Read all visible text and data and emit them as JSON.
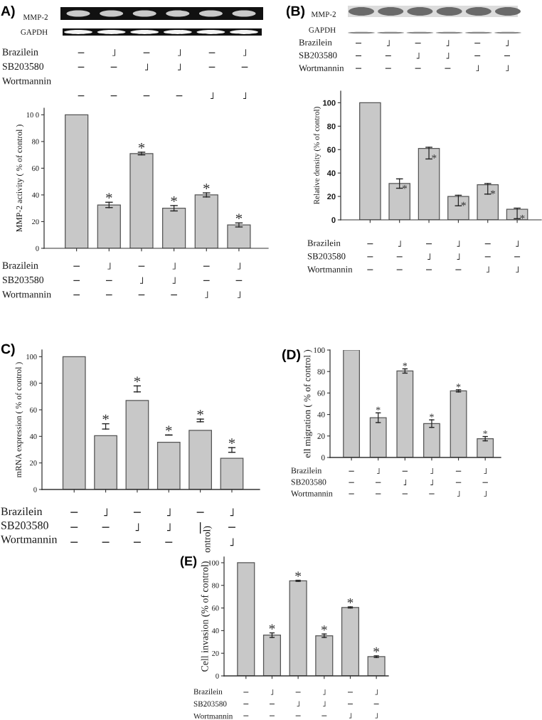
{
  "chart_data": [
    {
      "type": "other",
      "title": "A)",
      "annotations": [
        "MMP-2",
        "GAPDH"
      ],
      "xlabel": "Brazilein\nSB203580\nWortmannin",
      "categories": [
        "−\n−\n\n−",
        "˩\n−\n\n−",
        "−\n˩\n\n−",
        "˩\n˩\n\n−",
        "−\n−\n\n˩",
        "˩\n−\n\n˩"
      ]
    },
    {
      "type": "bar",
      "ylabel": "MMP-2 activity ( % of control )",
      "xlabel": "Brazilein\nSB203580\nWortmannin",
      "categories": [
        "−\n−\n−",
        "˩\n−\n−",
        "−\n˩\n−",
        "˩\n˩\n−",
        "−\n−\n˩",
        "˩\n−\n˩"
      ],
      "values": [
        100,
        32.5,
        71,
        30,
        40,
        17.5
      ],
      "errors": [
        null,
        2,
        1,
        2,
        1.5,
        1.5
      ],
      "value_labels": [
        null,
        "*",
        "*",
        "*",
        "*",
        "*"
      ],
      "color": "#c8c8c8",
      "ylim": [
        0,
        105
      ],
      "yticks": [
        0,
        20,
        40,
        60,
        80,
        {
          "value": 100,
          "label": "10 0"
        }
      ]
    },
    {
      "type": "other",
      "title": "(B)",
      "annotations": [
        "MMP-2",
        "GAPDH"
      ],
      "xlabel": "Brazilein\nSB203580\nWortmannin",
      "categories": [
        "−\n−\n−",
        "˩\n−\n−",
        "−\n˩\n−",
        "˩\n˩\n−",
        "−\n−\n˩",
        "˩\n−\n˩"
      ]
    },
    {
      "type": "bar",
      "ylabel": "Relative density (% of control)",
      "xlabel": "Brazilein\nSB203580\nWortmannin",
      "categories": [
        "−\n−\n−",
        "˩\n−\n−",
        "−\n˩\n−",
        "˩\n˩\n−",
        "−\n−\n˩",
        "˩\n−\n˩"
      ],
      "values": [
        100,
        31,
        61,
        20,
        30,
        9
      ],
      "errors": [
        null,
        [
          27,
          35
        ],
        [
          52,
          62
        ],
        [
          12,
          21
        ],
        [
          22,
          31
        ],
        [
          1,
          10
        ]
      ],
      "value_labels": [
        null,
        "*",
        "*",
        "*",
        "*",
        "*"
      ],
      "color": "#c8c8c8",
      "ylim": [
        0,
        110
      ],
      "yticks": [
        0,
        20,
        40,
        60,
        80,
        100
      ]
    },
    {
      "type": "bar",
      "title": "C)",
      "ylabel": "mRNA expression ( % of control )",
      "xlabel": "Brazilein\nSB203580\nWortmannin",
      "annotations": [
        "ontrol)"
      ],
      "categories": [
        "−\n−\n−",
        "˩\n−\n−",
        "−\n˩\n−",
        "˩\n˩\n−",
        "−\n|",
        "˩\n−\n˩"
      ],
      "values": [
        100,
        40.5,
        67,
        35.5,
        44.5,
        23.5
      ],
      "errors": [
        null,
        [
          45.5,
          49.5
        ],
        [
          73.5,
          78
        ],
        [
          41,
          41
        ],
        [
          51,
          53
        ],
        [
          28,
          31.5
        ]
      ],
      "value_labels": [
        null,
        "*",
        "*",
        "*",
        "*",
        "*"
      ],
      "color": "#c8c8c8",
      "ylim": [
        0,
        105
      ],
      "yticks": [
        0,
        20,
        40,
        60,
        80,
        100
      ]
    },
    {
      "type": "bar",
      "title": "(D)",
      "ylabel": "ell migration ( % of control )",
      "xlabel": "Brazilein\nSB203580\nWortmannin",
      "categories": [
        "−\n−\n−",
        "˩\n−\n−",
        "−\n˩\n−",
        "˩\n˩\n−",
        "−\n−\n˩",
        "˩\n−\n˩"
      ],
      "values": [
        100,
        37,
        80.5,
        31.5,
        62,
        17.5
      ],
      "errors": [
        null,
        4.5,
        2,
        3.5,
        1,
        2
      ],
      "value_labels": [
        null,
        "*",
        "*",
        "*",
        "*",
        "*"
      ],
      "color": "#c8c8c8",
      "ylim": [
        0,
        100
      ],
      "yticks": [
        0,
        20,
        40,
        60,
        80,
        100
      ]
    },
    {
      "type": "bar",
      "title": "(E)",
      "ylabel": "Cell invasion (% of control)",
      "xlabel": "Brazilein\nSB203580\nWortmannin",
      "categories": [
        "−\n−\n−",
        "˩\n−\n−",
        "−\n˩\n−",
        "˩\n˩\n−",
        "−\n−\n˩",
        "˩\n−\n˩"
      ],
      "values": [
        100,
        36,
        84,
        35.5,
        60.5,
        17
      ],
      "errors": [
        null,
        2,
        0.5,
        1.5,
        0.5,
        0.7
      ],
      "value_labels": [
        null,
        "*",
        "*",
        "*",
        "*",
        "*"
      ],
      "color": "#c8c8c8",
      "ylim": [
        0,
        105
      ],
      "yticks": [
        0,
        20,
        40,
        60,
        80,
        100
      ]
    }
  ]
}
